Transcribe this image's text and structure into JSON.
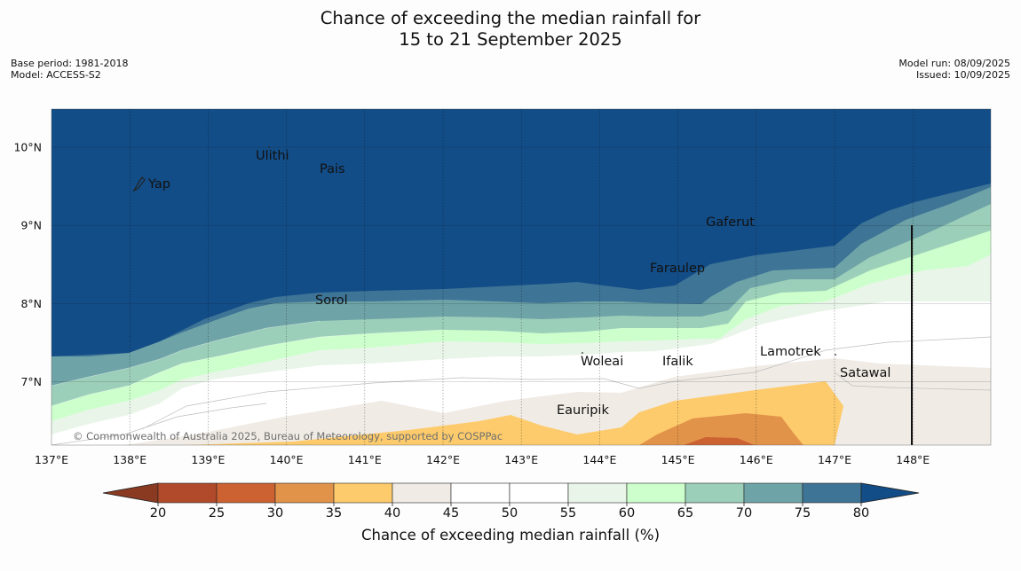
{
  "header": {
    "title_line1": "Chance of exceeding the median rainfall for",
    "title_line2": "15 to 21 September 2025",
    "base_period": "Base period: 1981-2018",
    "model": "Model: ACCESS-S2",
    "model_run": "Model run: 08/09/2025",
    "issued": "Issued: 10/09/2025"
  },
  "map": {
    "lon_labels": [
      "137°E",
      "138°E",
      "139°E",
      "140°E",
      "141°E",
      "142°E",
      "143°E",
      "144°E",
      "145°E",
      "146°E",
      "147°E",
      "148°E"
    ],
    "lat_labels": [
      "10°N",
      "9°N",
      "8°N",
      "7°N"
    ],
    "copyright": "© Commonwealth of Australia 2025, Bureau of Meteorology, supported by COSPPac",
    "places": [
      {
        "name": "Ulithi"
      },
      {
        "name": "Pais"
      },
      {
        "name": "Yap"
      },
      {
        "name": "Gaferut"
      },
      {
        "name": "Faraulep"
      },
      {
        "name": "Sorol"
      },
      {
        "name": "Lamotrek"
      },
      {
        "name": "Woleai"
      },
      {
        "name": "Ifalik"
      },
      {
        "name": "Satawal"
      },
      {
        "name": "Eauripik"
      }
    ]
  },
  "legend": {
    "title": "Chance of exceeding median rainfall (%)",
    "ticks": [
      "20",
      "25",
      "30",
      "35",
      "40",
      "45",
      "50",
      "55",
      "60",
      "65",
      "70",
      "75",
      "80"
    ],
    "colors": [
      "#8b3a22",
      "#b04a2a",
      "#cc6131",
      "#e2934a",
      "#fdcb6b",
      "#f0ebe5",
      "#ffffff",
      "#ffffff",
      "#eaf5ea",
      "#ccffcc",
      "#9ccfb9",
      "#6ea3a7",
      "#3e7496",
      "#134d87"
    ]
  }
}
